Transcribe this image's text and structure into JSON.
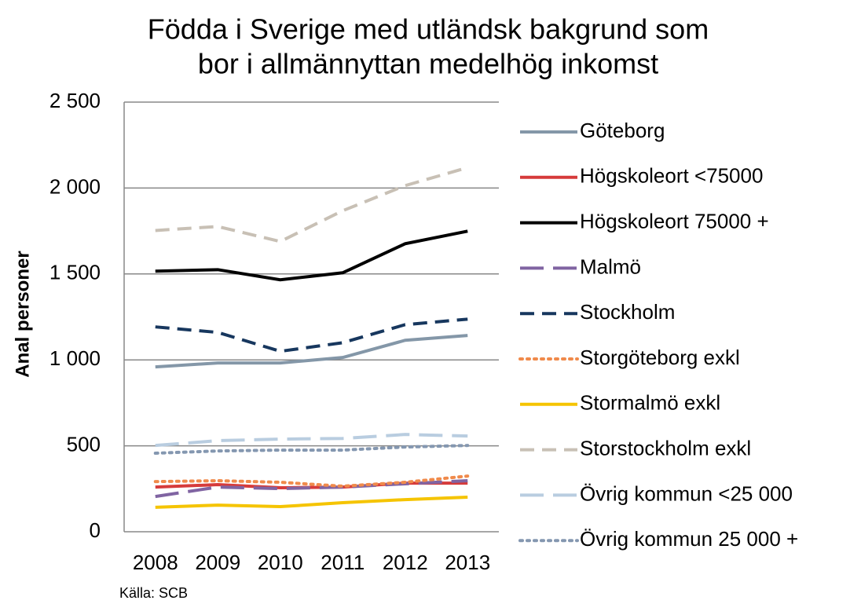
{
  "chart_data": {
    "type": "line",
    "title": [
      "Födda i Sverige med utländsk bakgrund som",
      "bor i allmännyttan medelhög inkomst"
    ],
    "y_label": "Anal personer",
    "source": "Källa: SCB",
    "categories": [
      "2008",
      "2009",
      "2010",
      "2011",
      "2012",
      "2013"
    ],
    "ylim": [
      0,
      2500
    ],
    "yticks": [
      0,
      500,
      {
        "value": 1000,
        "label": "1 000"
      },
      {
        "value": 1500,
        "label": "1 500"
      },
      {
        "value": 2000,
        "label": "2 000"
      },
      {
        "value": 2500,
        "label": "2 500"
      }
    ],
    "grid": true,
    "legend": "right",
    "series": [
      {
        "name": "Göteborg",
        "color": "#8497a8",
        "style": "solid",
        "values": [
          959,
          982,
          982,
          1014,
          1114,
          1142
        ]
      },
      {
        "name": "Högskoleort <75000",
        "color": "#d63b3b",
        "style": "solid",
        "values": [
          260,
          274,
          256,
          260,
          283,
          283
        ]
      },
      {
        "name": "Högskoleort 75000 +",
        "color": "#000000",
        "style": "solid",
        "values": [
          1516,
          1525,
          1466,
          1507,
          1676,
          1749
        ]
      },
      {
        "name": "Malmö",
        "color": "#8064a2",
        "style": "longdash",
        "values": [
          205,
          260,
          251,
          260,
          279,
          297
        ]
      },
      {
        "name": "Stockholm",
        "color": "#17375e",
        "style": "dash",
        "values": [
          1192,
          1160,
          1050,
          1100,
          1205,
          1237
        ]
      },
      {
        "name": "Storgöteborg exkl",
        "color": "#f08a4b",
        "style": "dot",
        "values": [
          292,
          297,
          288,
          265,
          288,
          324
        ]
      },
      {
        "name": "Stormalmö exkl",
        "color": "#f5c400",
        "style": "solid",
        "values": [
          142,
          155,
          146,
          169,
          187,
          201
        ]
      },
      {
        "name": "Storstockholm exkl",
        "color": "#c8c0b5",
        "style": "dash",
        "values": [
          1753,
          1776,
          1689,
          1868,
          2014,
          2119
        ]
      },
      {
        "name": "Övrig kommun <25 000",
        "color": "#b9cde0",
        "style": "longdash",
        "values": [
          502,
          530,
          539,
          543,
          566,
          557
        ]
      },
      {
        "name": "Övrig kommun 25 000 +",
        "color": "#8497b0",
        "style": "dot",
        "values": [
          457,
          470,
          475,
          475,
          493,
          502
        ]
      }
    ]
  }
}
